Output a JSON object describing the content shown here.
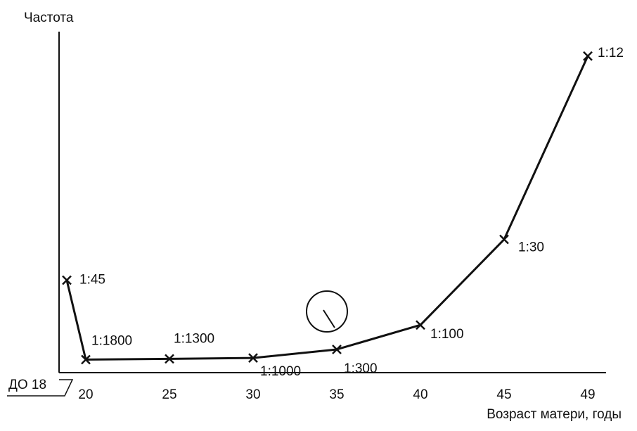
{
  "chart_data": {
    "type": "line",
    "y_label": "Частота",
    "x_label": "Возраст матери, годы",
    "categories": [
      "ДО 18",
      "20",
      "25",
      "30",
      "35",
      "40",
      "45",
      "49"
    ],
    "values": [
      0.022222,
      0.000556,
      0.000769,
      0.001,
      0.003333,
      0.01,
      0.033333,
      0.083333
    ],
    "value_labels": [
      "1:45",
      "1:1800",
      "1:1300",
      "1:1000",
      "1:300",
      "1:100",
      "1:30",
      "1:12"
    ],
    "color": "#111111",
    "ylim": [
      -0.003,
      0.09
    ]
  }
}
